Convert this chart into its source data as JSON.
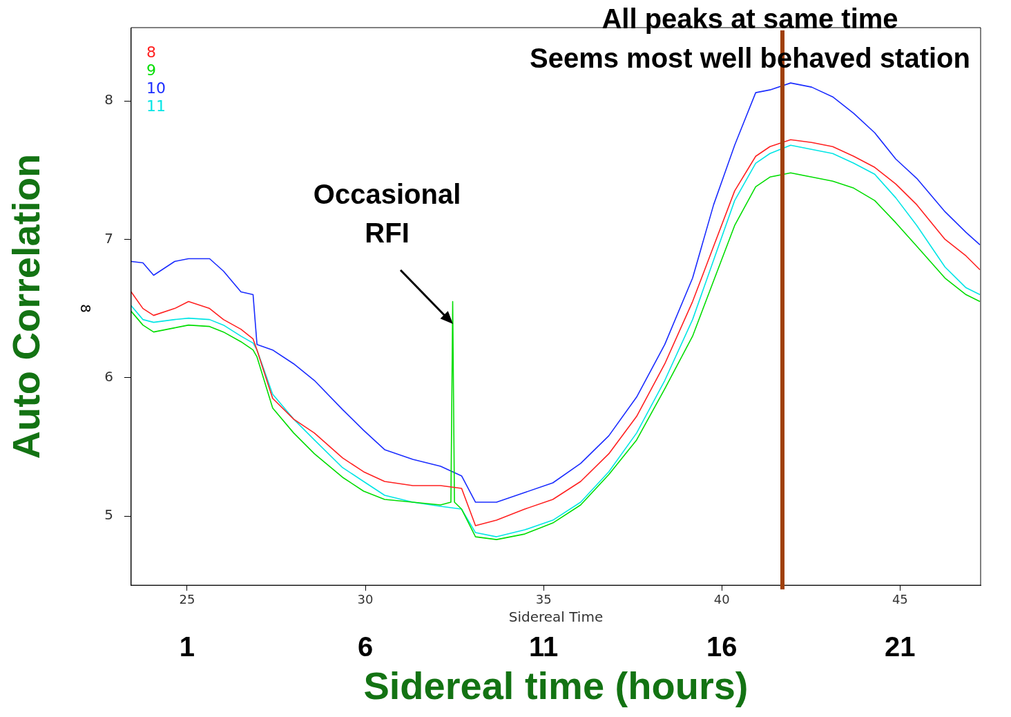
{
  "chart_data": {
    "type": "line",
    "xlabel": "Sidereal Time",
    "x2label": "Sidereal time (hours)",
    "ylabel": "Auto Correlation",
    "xlim": [
      23.43,
      47.26
    ],
    "xticks": [
      25,
      30,
      35,
      40,
      45
    ],
    "x2lim": [
      -0.57,
      23.26
    ],
    "x2ticks": [
      1,
      6,
      11,
      16,
      21
    ],
    "ylim": [
      4.5,
      8.53
    ],
    "yticks": [
      5,
      6,
      7,
      8
    ],
    "grid": false,
    "legend": "top left",
    "marker": "none",
    "line_style": "solid",
    "x": [
      23.43,
      23.76,
      24.06,
      24.65,
      25.04,
      25.63,
      26.02,
      26.51,
      26.85,
      26.96,
      27.4,
      27.99,
      28.57,
      29.36,
      29.95,
      30.54,
      31.33,
      32.11,
      32.7,
      33.09,
      33.68,
      34.47,
      35.26,
      36.04,
      36.83,
      37.61,
      38.4,
      39.18,
      39.77,
      40.36,
      40.95,
      41.35,
      41.93,
      42.52,
      43.11,
      43.7,
      44.29,
      44.88,
      45.47,
      46.26,
      46.85,
      47.24
    ],
    "series": [
      {
        "name": "8",
        "color": "#ff2020",
        "values": [
          6.62,
          6.5,
          6.45,
          6.5,
          6.55,
          6.5,
          6.42,
          6.35,
          6.28,
          6.2,
          5.85,
          5.7,
          5.6,
          5.42,
          5.32,
          5.25,
          5.22,
          5.22,
          5.2,
          4.93,
          4.97,
          5.05,
          5.12,
          5.25,
          5.45,
          5.72,
          6.1,
          6.55,
          6.95,
          7.35,
          7.6,
          7.67,
          7.72,
          7.7,
          7.67,
          7.6,
          7.52,
          7.4,
          7.25,
          7.0,
          6.88,
          6.78
        ]
      },
      {
        "name": "9",
        "color": "#00dd00",
        "x": [
          23.43,
          23.76,
          24.06,
          24.65,
          25.04,
          25.63,
          26.02,
          26.51,
          26.85,
          26.96,
          27.4,
          27.99,
          28.57,
          29.36,
          29.95,
          30.54,
          31.33,
          32.11,
          32.4,
          32.45,
          32.5,
          32.7,
          33.09,
          33.68,
          34.47,
          35.26,
          36.04,
          36.83,
          37.61,
          38.4,
          39.18,
          39.77,
          40.36,
          40.95,
          41.35,
          41.93,
          42.52,
          43.11,
          43.7,
          44.29,
          44.88,
          45.47,
          46.26,
          46.85,
          47.24
        ],
        "values": [
          6.48,
          6.38,
          6.33,
          6.36,
          6.38,
          6.37,
          6.33,
          6.26,
          6.2,
          6.15,
          5.78,
          5.6,
          5.45,
          5.28,
          5.18,
          5.12,
          5.1,
          5.08,
          5.1,
          6.55,
          5.1,
          5.05,
          4.85,
          4.83,
          4.87,
          4.95,
          5.08,
          5.3,
          5.55,
          5.92,
          6.3,
          6.7,
          7.1,
          7.38,
          7.45,
          7.48,
          7.45,
          7.42,
          7.37,
          7.28,
          7.12,
          6.95,
          6.72,
          6.6,
          6.55
        ]
      },
      {
        "name": "10",
        "color": "#1a2cff",
        "values": [
          6.84,
          6.83,
          6.74,
          6.84,
          6.86,
          6.86,
          6.77,
          6.62,
          6.6,
          6.24,
          6.2,
          6.1,
          5.98,
          5.77,
          5.62,
          5.48,
          5.41,
          5.36,
          5.29,
          5.1,
          5.1,
          5.17,
          5.24,
          5.38,
          5.58,
          5.86,
          6.24,
          6.72,
          7.25,
          7.68,
          8.06,
          8.08,
          8.13,
          8.1,
          8.03,
          7.91,
          7.77,
          7.58,
          7.44,
          7.2,
          7.05,
          6.96
        ]
      },
      {
        "name": "11",
        "color": "#00e5e5",
        "values": [
          6.52,
          6.42,
          6.4,
          6.42,
          6.43,
          6.42,
          6.38,
          6.3,
          6.25,
          6.2,
          5.88,
          5.7,
          5.55,
          5.35,
          5.25,
          5.15,
          5.1,
          5.07,
          5.05,
          4.88,
          4.85,
          4.9,
          4.97,
          5.1,
          5.32,
          5.6,
          5.98,
          6.42,
          6.85,
          7.28,
          7.55,
          7.62,
          7.68,
          7.65,
          7.62,
          7.55,
          7.47,
          7.3,
          7.1,
          6.8,
          6.65,
          6.6
        ]
      }
    ],
    "ref_lines": [
      {
        "axis": "x",
        "value": 41.7,
        "color": "#a0400a"
      }
    ],
    "annotations": [
      "8",
      "All peaks at same time",
      "Seems most well behaved station",
      {
        "text": "Occasional RFI",
        "x": 32.45,
        "y": 6.39
      }
    ]
  }
}
